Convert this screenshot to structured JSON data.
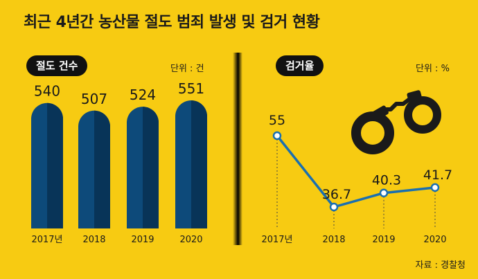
{
  "title": "최근 4년간 농산물 절도 범죄 발생 및 검거 현황",
  "source": "자료 : 경찰청",
  "colors": {
    "background": "#f7cb12",
    "bar": "#0d4a7a",
    "bar_shade": "#083458",
    "line": "#1a6fb0",
    "point_fill": "#ffffff",
    "text": "#1a1a1a",
    "handcuffs": "#1a1a1a"
  },
  "icons": {
    "handcuffs": "handcuffs-icon"
  },
  "left": {
    "pill": "절도 건수",
    "unit": "단위 : 건"
  },
  "right": {
    "pill": "검거율",
    "unit": "단위 : %"
  },
  "chart_data": [
    {
      "type": "bar",
      "title": "절도 건수",
      "categories": [
        "2017년",
        "2018",
        "2019",
        "2020"
      ],
      "values": [
        540,
        507,
        524,
        551
      ],
      "unit": "단위 : 건",
      "data_labels": [
        "540",
        "507",
        "524",
        "551"
      ]
    },
    {
      "type": "line",
      "title": "검거율",
      "x": [
        "2017년",
        "2018",
        "2019",
        "2020"
      ],
      "values": [
        55,
        36.7,
        40.3,
        41.7
      ],
      "unit": "단위 : %",
      "data_labels": [
        "55",
        "36.7",
        "40.3",
        "41.7"
      ]
    }
  ]
}
